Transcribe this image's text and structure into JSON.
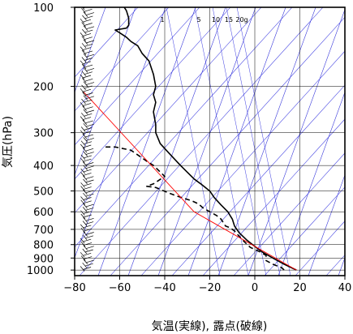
{
  "chart_data": {
    "type": "line",
    "title": "",
    "xlabel": "気温(実線), 露点(破線)",
    "ylabel": "気圧(hPa)",
    "xlim": [
      -80,
      40
    ],
    "ylim": [
      1050,
      100
    ],
    "y_scale": "log",
    "x_ticks": [
      -80,
      -60,
      -40,
      -20,
      0,
      20,
      40
    ],
    "x_tick_labels": [
      "−80",
      "−60",
      "−40",
      "−20",
      "0",
      "20",
      "40"
    ],
    "y_ticks": [
      100,
      200,
      300,
      400,
      500,
      600,
      700,
      800,
      900,
      1000
    ],
    "y_tick_labels": [
      "100",
      "200",
      "300",
      "400",
      "500",
      "600",
      "700",
      "800",
      "900",
      "1000"
    ],
    "mixing_ratio_labels": [
      "1",
      "5",
      "10",
      "15",
      "20g"
    ],
    "grid": true,
    "series": [
      {
        "style": "solid",
        "color": "#000000",
        "points": [
          [
            18.5,
            1000
          ],
          [
            13,
            950
          ],
          [
            8,
            900
          ],
          [
            3,
            850
          ],
          [
            -1,
            800
          ],
          [
            -3.5,
            770
          ],
          [
            -7,
            720
          ],
          [
            -9,
            680
          ],
          [
            -10,
            640
          ],
          [
            -12,
            600
          ],
          [
            -15,
            565
          ],
          [
            -18,
            530
          ],
          [
            -20,
            500
          ],
          [
            -24,
            470
          ],
          [
            -27,
            450
          ],
          [
            -33,
            400
          ],
          [
            -38,
            360
          ],
          [
            -42,
            330
          ],
          [
            -44,
            300
          ],
          [
            -44,
            280
          ],
          [
            -45,
            250
          ],
          [
            -44,
            230
          ],
          [
            -45,
            215
          ],
          [
            -44,
            200
          ],
          [
            -45,
            180
          ],
          [
            -47,
            160
          ],
          [
            -50,
            150
          ],
          [
            -52,
            140
          ],
          [
            -55,
            135
          ],
          [
            -57,
            130
          ],
          [
            -60,
            125
          ],
          [
            -62,
            122
          ],
          [
            -57,
            120
          ],
          [
            -56,
            117
          ],
          [
            -56,
            110
          ],
          [
            -57,
            103
          ],
          [
            -58,
            100
          ]
        ]
      },
      {
        "style": "dashed",
        "color": "#000000",
        "points": [
          [
            13,
            1000
          ],
          [
            12,
            980
          ],
          [
            8,
            950
          ],
          [
            5,
            920
          ],
          [
            5,
            880
          ],
          [
            2,
            850
          ],
          [
            -2,
            820
          ],
          [
            -4,
            790
          ],
          [
            -6,
            760
          ],
          [
            -9,
            710
          ],
          [
            -11,
            690
          ],
          [
            -13,
            680
          ],
          [
            -15,
            640
          ],
          [
            -17,
            620
          ],
          [
            -20,
            600
          ],
          [
            -23,
            580
          ],
          [
            -25,
            560
          ],
          [
            -28,
            545
          ],
          [
            -34,
            525
          ],
          [
            -38,
            510
          ],
          [
            -44,
            485
          ],
          [
            -48,
            480
          ],
          [
            -45,
            470
          ],
          [
            -40,
            440
          ],
          [
            -45,
            400
          ],
          [
            -48,
            385
          ],
          [
            -55,
            350
          ],
          [
            -62,
            340
          ],
          [
            -67,
            340
          ]
        ]
      },
      {
        "style": "solid",
        "color": "#ff0000",
        "points": [
          [
            18.5,
            1000
          ],
          [
            -27,
            600
          ],
          [
            -76,
            210
          ]
        ]
      }
    ]
  }
}
